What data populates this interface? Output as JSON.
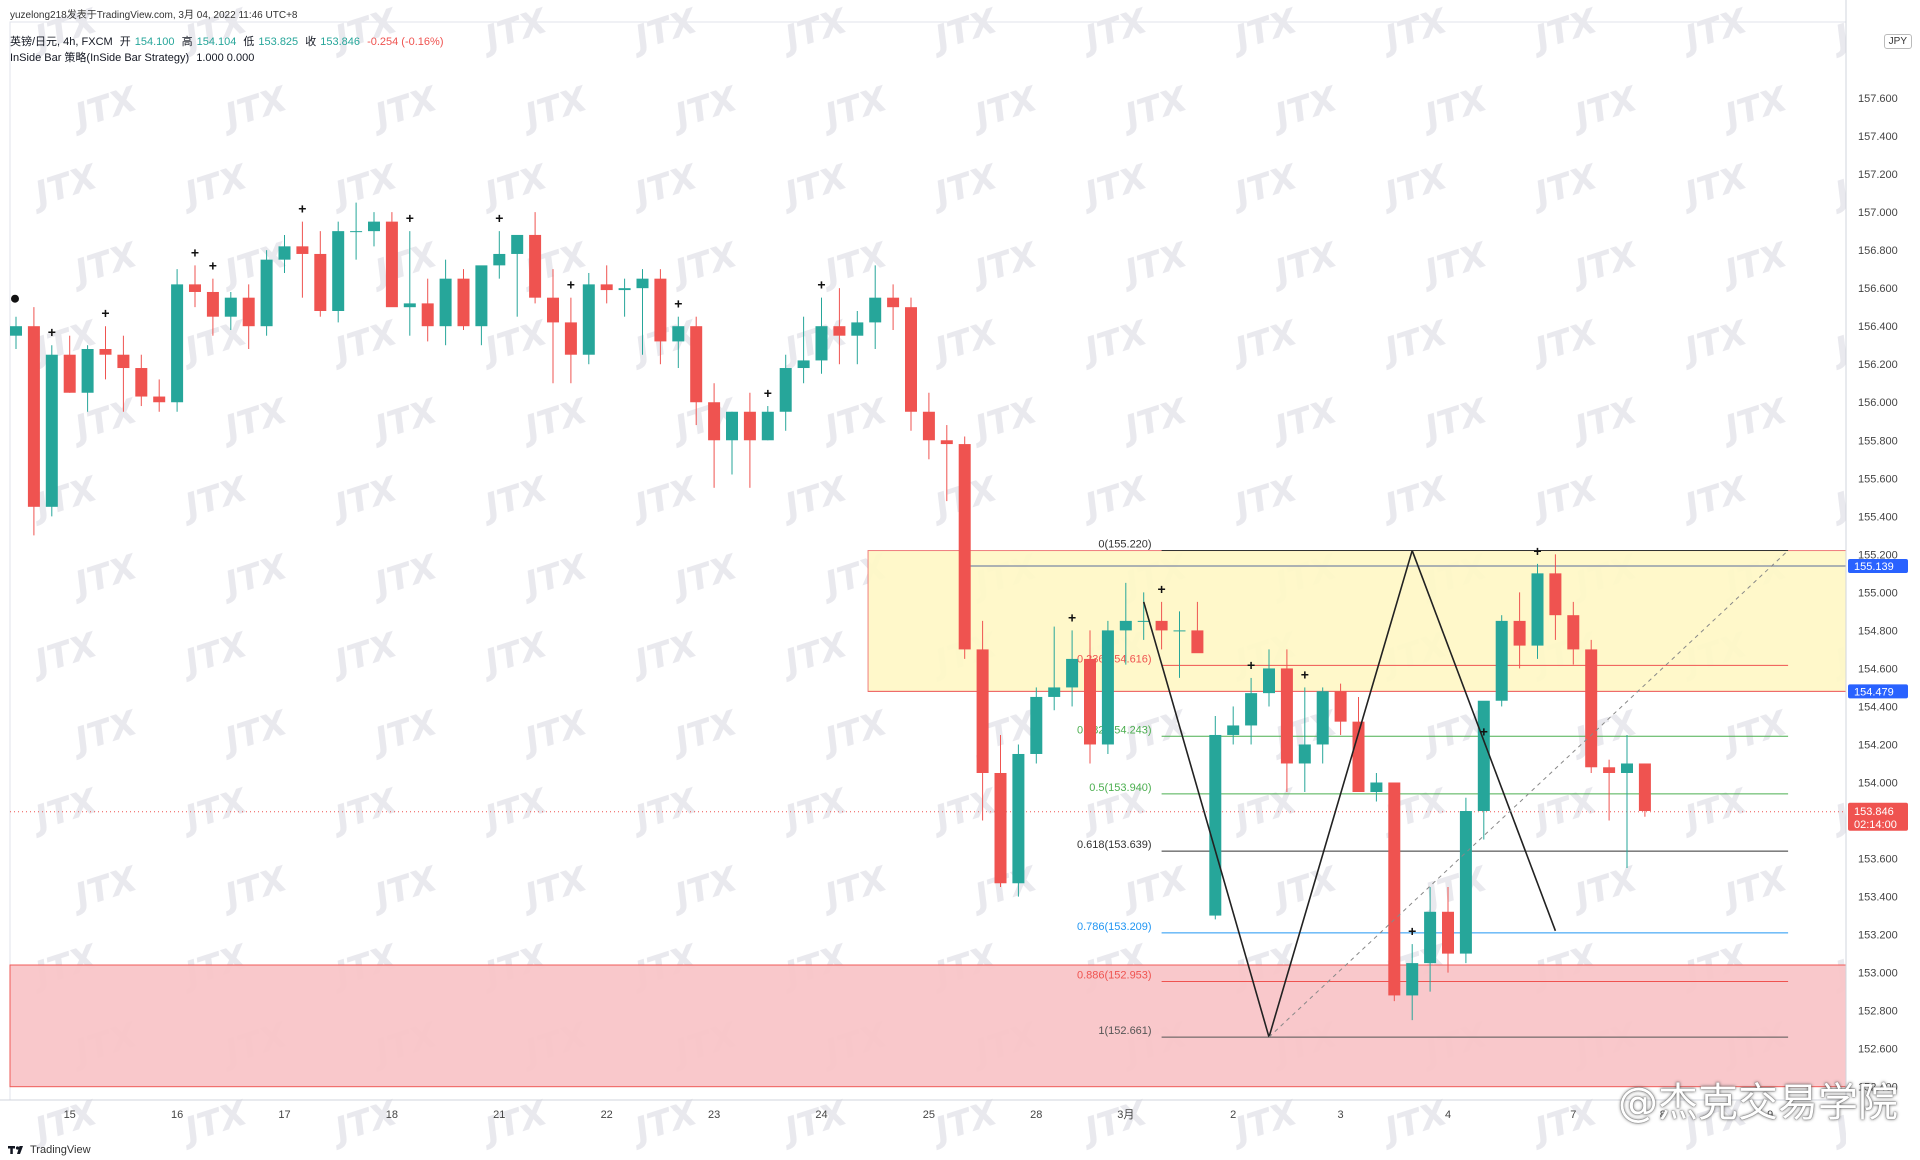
{
  "header": {
    "attribution": "yuzelong218发表于TradingView.com, 3月 04, 2022 11:46 UTC+8",
    "symbol": "英镑/日元, 4h, FXCM",
    "open_label": "开",
    "open_value": "154.100",
    "high_label": "高",
    "high_value": "154.104",
    "low_label": "低",
    "low_value": "153.825",
    "close_label": "收",
    "close_value": "153.846",
    "change": "-0.254 (-0.16%)",
    "indicator": "InSide Bar 策略(InSide Bar Strategy)",
    "indicator_values": "1.000  0.000"
  },
  "currency_badge": "JPY",
  "footer_brand": "TradingView",
  "author_watermark": "@杰克交易学院",
  "repeated_watermark": "JTX",
  "colors": {
    "up": "#26a69a",
    "down": "#ef5350",
    "zone_yellow": "#fff8c8",
    "zone_red": "#f9c6c9",
    "last_price_bg": "#ef5350",
    "level_label_bg": "#2962ff"
  },
  "chart_data": {
    "type": "candlestick",
    "timeframe": "4h",
    "ylim": [
      152.33,
      158.0
    ],
    "y_ticks": [
      "157.600",
      "157.400",
      "157.200",
      "157.000",
      "156.800",
      "156.600",
      "156.400",
      "156.200",
      "156.000",
      "155.800",
      "155.600",
      "155.400",
      "155.200",
      "155.000",
      "154.800",
      "154.600",
      "154.400",
      "154.200",
      "154.000",
      "153.800",
      "153.600",
      "153.400",
      "153.200",
      "153.000",
      "152.800",
      "152.600",
      "152.400"
    ],
    "x_labels": [
      {
        "label": "15",
        "index": 3
      },
      {
        "label": "16",
        "index": 9
      },
      {
        "label": "17",
        "index": 15
      },
      {
        "label": "18",
        "index": 21
      },
      {
        "label": "21",
        "index": 27
      },
      {
        "label": "22",
        "index": 33
      },
      {
        "label": "23",
        "index": 39
      },
      {
        "label": "24",
        "index": 45
      },
      {
        "label": "25",
        "index": 51
      },
      {
        "label": "28",
        "index": 57
      },
      {
        "label": "3月",
        "index": 62
      },
      {
        "label": "2",
        "index": 68
      },
      {
        "label": "3",
        "index": 74
      },
      {
        "label": "4",
        "index": 80
      },
      {
        "label": "7",
        "index": 87
      },
      {
        "label": "8",
        "index": 92
      },
      {
        "label": "9",
        "index": 98
      }
    ],
    "candles": [
      [
        156.35,
        156.45,
        156.28,
        156.4
      ],
      [
        156.4,
        156.5,
        155.3,
        155.45
      ],
      [
        155.45,
        156.3,
        155.4,
        156.25
      ],
      [
        156.25,
        156.35,
        156.05,
        156.05
      ],
      [
        156.05,
        156.3,
        155.95,
        156.28
      ],
      [
        156.28,
        156.4,
        156.12,
        156.25
      ],
      [
        156.25,
        156.35,
        155.95,
        156.18
      ],
      [
        156.18,
        156.25,
        155.98,
        156.03
      ],
      [
        156.03,
        156.12,
        155.95,
        156.0
      ],
      [
        156.0,
        156.7,
        155.95,
        156.62
      ],
      [
        156.62,
        156.72,
        156.5,
        156.58
      ],
      [
        156.58,
        156.65,
        156.35,
        156.45
      ],
      [
        156.45,
        156.58,
        156.38,
        156.55
      ],
      [
        156.55,
        156.62,
        156.28,
        156.4
      ],
      [
        156.4,
        156.8,
        156.35,
        156.75
      ],
      [
        156.75,
        156.88,
        156.68,
        156.82
      ],
      [
        156.82,
        156.95,
        156.55,
        156.78
      ],
      [
        156.78,
        156.9,
        156.45,
        156.48
      ],
      [
        156.48,
        156.95,
        156.42,
        156.9
      ],
      [
        156.9,
        157.05,
        156.75,
        156.9
      ],
      [
        156.9,
        157.0,
        156.82,
        156.95
      ],
      [
        156.95,
        157.0,
        156.55,
        156.5
      ],
      [
        156.5,
        156.9,
        156.35,
        156.52
      ],
      [
        156.52,
        156.65,
        156.32,
        156.4
      ],
      [
        156.4,
        156.75,
        156.3,
        156.65
      ],
      [
        156.65,
        156.7,
        156.38,
        156.4
      ],
      [
        156.4,
        156.7,
        156.3,
        156.72
      ],
      [
        156.72,
        156.9,
        156.65,
        156.78
      ],
      [
        156.78,
        156.85,
        156.45,
        156.88
      ],
      [
        156.88,
        157.0,
        156.52,
        156.55
      ],
      [
        156.55,
        156.7,
        156.1,
        156.42
      ],
      [
        156.42,
        156.55,
        156.1,
        156.25
      ],
      [
        156.25,
        156.68,
        156.2,
        156.62
      ],
      [
        156.62,
        156.72,
        156.52,
        156.59
      ],
      [
        156.59,
        156.65,
        156.45,
        156.6
      ],
      [
        156.6,
        156.7,
        156.25,
        156.65
      ],
      [
        156.65,
        156.7,
        156.2,
        156.32
      ],
      [
        156.32,
        156.45,
        156.18,
        156.4
      ],
      [
        156.4,
        156.45,
        155.88,
        156.0
      ],
      [
        156.0,
        156.1,
        155.55,
        155.8
      ],
      [
        155.8,
        155.95,
        155.62,
        155.95
      ],
      [
        155.95,
        156.05,
        155.55,
        155.8
      ],
      [
        155.8,
        155.98,
        155.8,
        155.95
      ],
      [
        155.95,
        156.25,
        155.85,
        156.18
      ],
      [
        156.18,
        156.45,
        156.1,
        156.22
      ],
      [
        156.22,
        156.55,
        156.15,
        156.4
      ],
      [
        156.4,
        156.6,
        156.2,
        156.35
      ],
      [
        156.35,
        156.48,
        156.2,
        156.42
      ],
      [
        156.42,
        156.72,
        156.28,
        156.55
      ],
      [
        156.55,
        156.62,
        156.38,
        156.5
      ],
      [
        156.5,
        156.55,
        155.85,
        155.95
      ],
      [
        155.95,
        156.05,
        155.7,
        155.8
      ],
      [
        155.8,
        155.88,
        155.48,
        155.78
      ],
      [
        155.78,
        155.82,
        154.65,
        154.7
      ],
      [
        154.7,
        154.85,
        153.8,
        154.05
      ],
      [
        154.05,
        154.25,
        153.45,
        153.47
      ],
      [
        153.47,
        154.2,
        153.4,
        154.15
      ],
      [
        154.15,
        154.5,
        154.1,
        154.45
      ],
      [
        154.45,
        154.82,
        154.38,
        154.5
      ],
      [
        154.5,
        154.8,
        154.4,
        154.65
      ],
      [
        154.65,
        154.8,
        154.1,
        154.2
      ],
      [
        154.2,
        154.85,
        154.15,
        154.8
      ],
      [
        154.8,
        155.05,
        154.62,
        154.85
      ],
      [
        154.85,
        155.0,
        154.75,
        154.85
      ],
      [
        154.85,
        154.95,
        154.7,
        154.8
      ],
      [
        154.8,
        154.9,
        154.55,
        154.8
      ]
    ],
    "candles_tail": [
      [
        154.8,
        154.95,
        154.7,
        154.68
      ],
      [
        153.3,
        154.35,
        153.28,
        154.25
      ],
      [
        154.25,
        154.4,
        154.2,
        154.3
      ],
      [
        154.3,
        154.55,
        154.2,
        154.47
      ],
      [
        154.47,
        154.7,
        154.4,
        154.6
      ],
      [
        154.6,
        154.7,
        153.95,
        154.1
      ],
      [
        154.1,
        154.5,
        153.95,
        154.2
      ],
      [
        154.2,
        154.5,
        154.1,
        154.48
      ],
      [
        154.48,
        154.52,
        154.25,
        154.32
      ],
      [
        154.32,
        154.45,
        153.95,
        153.95
      ],
      [
        153.95,
        154.05,
        153.9,
        154.0
      ],
      [
        154.0,
        154.0,
        152.85,
        152.88
      ],
      [
        152.88,
        153.15,
        152.75,
        153.05
      ],
      [
        153.05,
        153.45,
        152.9,
        153.32
      ],
      [
        153.32,
        153.45,
        153.0,
        153.1
      ],
      [
        153.1,
        153.92,
        153.05,
        153.85
      ],
      [
        153.85,
        154.2,
        153.7,
        154.43
      ],
      [
        154.43,
        154.88,
        154.4,
        154.85
      ],
      [
        154.85,
        155.0,
        154.6,
        154.72
      ],
      [
        154.72,
        155.15,
        154.65,
        155.1
      ],
      [
        155.1,
        155.2,
        154.75,
        154.88
      ],
      [
        154.88,
        154.95,
        154.62,
        154.7
      ],
      [
        154.7,
        154.75,
        154.05,
        154.08
      ],
      [
        154.08,
        154.12,
        153.8,
        154.05
      ],
      [
        154.05,
        154.25,
        153.55,
        154.1
      ],
      [
        154.1,
        154.1,
        153.82,
        153.85
      ]
    ],
    "inside_bar_markers_up": [
      2,
      5,
      10,
      11,
      16,
      22,
      27,
      31,
      37,
      42,
      45,
      59,
      64,
      69,
      72,
      78,
      82,
      85,
      99
    ],
    "inside_bar_marker_dot": 0,
    "current_price": 153.846,
    "current_price_label": "153.846",
    "countdown_label": "02:14:00",
    "levels": [
      {
        "price": 155.139,
        "label": "155.139"
      },
      {
        "price": 154.479,
        "label": "154.479"
      }
    ],
    "zones": [
      {
        "name": "resistance",
        "from": 154.479,
        "to": 155.22
      },
      {
        "name": "support",
        "from": 152.4,
        "to": 153.04
      }
    ],
    "fibonacci": [
      {
        "ratio": "0",
        "price": 155.22,
        "label": "0(155.220)"
      },
      {
        "ratio": "0.236",
        "price": 154.616,
        "label": "0.236(154.616)"
      },
      {
        "ratio": "0.382",
        "price": 154.243,
        "label": "0.382(154.243)"
      },
      {
        "ratio": "0.5",
        "price": 153.94,
        "label": "0.5(153.940)"
      },
      {
        "ratio": "0.618",
        "price": 153.639,
        "label": "0.618(153.639)"
      },
      {
        "ratio": "0.786",
        "price": 153.209,
        "label": "0.786(153.209)"
      },
      {
        "ratio": "0.886",
        "price": 152.953,
        "label": "0.886(152.953)"
      },
      {
        "ratio": "1",
        "price": 152.661,
        "label": "1(152.661)"
      }
    ]
  }
}
